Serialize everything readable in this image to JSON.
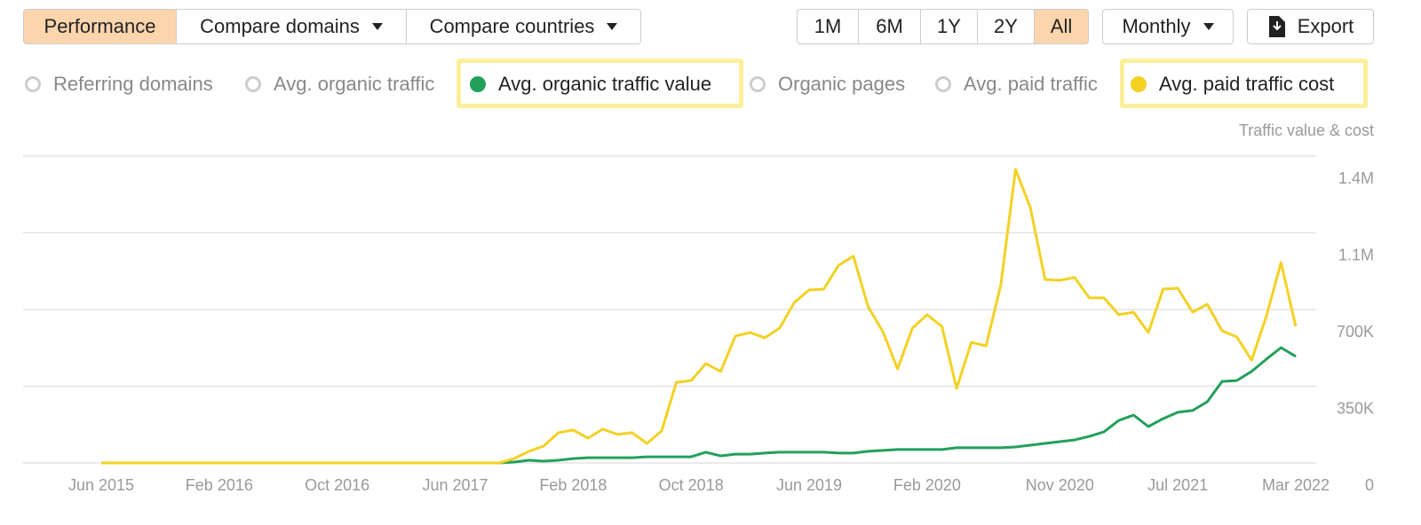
{
  "toolbar": {
    "tabs": [
      {
        "label": "Performance",
        "active": true
      },
      {
        "label": "Compare domains",
        "active": false
      },
      {
        "label": "Compare countries",
        "active": false
      }
    ],
    "ranges": [
      {
        "label": "1M",
        "active": false
      },
      {
        "label": "6M",
        "active": false
      },
      {
        "label": "1Y",
        "active": false
      },
      {
        "label": "2Y",
        "active": false
      },
      {
        "label": "All",
        "active": true
      }
    ],
    "interval": "Monthly",
    "export": "Export"
  },
  "metrics": [
    "Referring domains",
    "Avg. organic traffic",
    "Organic pages",
    "Avg. paid traffic"
  ],
  "chart_data": {
    "type": "line",
    "y_label": "Traffic value & cost",
    "categories": [
      "Jun 2015",
      null,
      null,
      null,
      null,
      null,
      null,
      null,
      "Feb 2016",
      null,
      null,
      null,
      null,
      null,
      null,
      null,
      "Oct 2016",
      null,
      null,
      null,
      null,
      null,
      null,
      null,
      "Jun 2017",
      null,
      null,
      null,
      null,
      null,
      null,
      null,
      "Feb 2018",
      null,
      null,
      null,
      null,
      null,
      null,
      null,
      "Oct 2018",
      null,
      null,
      null,
      null,
      null,
      null,
      null,
      "Jun 2019",
      null,
      null,
      null,
      null,
      null,
      null,
      null,
      "Feb 2020",
      null,
      null,
      null,
      null,
      null,
      null,
      null,
      null,
      "Nov 2020",
      null,
      null,
      null,
      null,
      null,
      null,
      null,
      "Jul 2021",
      null,
      null,
      null,
      null,
      null,
      null,
      null,
      "Mar 2022"
    ],
    "series": [
      {
        "name": "Avg. organic traffic value",
        "color": "#22a05a",
        "values": [
          0,
          0,
          0,
          0,
          0,
          0,
          0,
          0,
          0,
          0,
          0,
          0,
          0,
          0,
          0,
          0,
          0,
          0,
          0,
          0,
          0,
          0,
          0,
          0,
          0,
          0,
          0,
          0,
          4000,
          12000,
          8000,
          12000,
          20000,
          24000,
          24000,
          24000,
          24000,
          28000,
          28000,
          28000,
          28000,
          49000,
          32000,
          40000,
          40000,
          45000,
          49000,
          49000,
          49000,
          49000,
          45000,
          45000,
          53000,
          57000,
          61000,
          61000,
          61000,
          61000,
          69000,
          69000,
          69000,
          69000,
          73000,
          81000,
          89000,
          97000,
          105000,
          121000,
          142000,
          194000,
          218000,
          166000,
          202000,
          231000,
          239000,
          279000,
          372000,
          376000,
          417000,
          473000,
          526000,
          486000
        ]
      },
      {
        "name": "Avg. paid traffic cost",
        "color": "#f3d123",
        "values": [
          0,
          0,
          0,
          0,
          0,
          0,
          0,
          0,
          0,
          0,
          0,
          0,
          0,
          0,
          0,
          0,
          0,
          0,
          0,
          0,
          0,
          0,
          0,
          0,
          0,
          0,
          0,
          0,
          20000,
          53000,
          77000,
          138000,
          150000,
          113000,
          154000,
          130000,
          138000,
          89000,
          146000,
          368000,
          376000,
          453000,
          417000,
          579000,
          595000,
          571000,
          615000,
          732000,
          789000,
          793000,
          902000,
          943000,
          712000,
          599000,
          429000,
          615000,
          676000,
          623000,
          340000,
          550000,
          534000,
          813000,
          1339000,
          1165000,
          837000,
          833000,
          846000,
          753000,
          753000,
          676000,
          688000,
          595000,
          793000,
          797000,
          688000,
          724000,
          603000,
          575000,
          469000,
          668000,
          914000,
          623000
        ]
      }
    ],
    "ylim": [
      0,
      1400000
    ],
    "yticks": [
      0,
      {
        "value": 350000,
        "label": "350K"
      },
      {
        "value": 700000,
        "label": "700K"
      },
      {
        "value": 1050000,
        "label": "1.1M"
      },
      {
        "value": 1400000,
        "label": "1.4M"
      }
    ],
    "grid": true
  }
}
